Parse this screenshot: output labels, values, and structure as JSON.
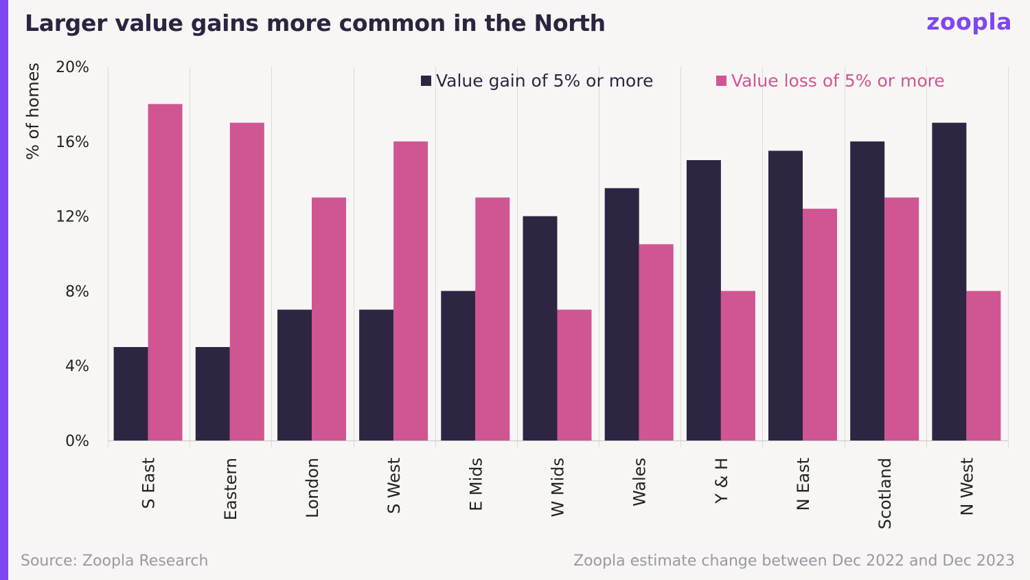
{
  "header": {
    "title": "Larger value gains more common in the North",
    "logo": "zoopla"
  },
  "footer": {
    "source": "Source: Zoopla Research",
    "note": "Zoopla estimate change between Dec 2022 and Dec 2023"
  },
  "colors": {
    "accent": "#8046f0",
    "gain": "#2e2543",
    "loss": "#d05593"
  },
  "chart_data": {
    "type": "bar",
    "title": "Larger value gains more common in the North",
    "xlabel": "",
    "ylabel": "% of homes",
    "ylim": [
      0,
      20
    ],
    "yticks": [
      0,
      4,
      8,
      12,
      16,
      20
    ],
    "ytick_labels": [
      "0%",
      "4%",
      "8%",
      "12%",
      "16%",
      "20%"
    ],
    "grid": "vertical separators",
    "legend": "top-right",
    "categories": [
      "S East",
      "Eastern",
      "London",
      "S West",
      "E Mids",
      "W Mids",
      "Wales",
      "Y & H",
      "N East",
      "Scotland",
      "N West"
    ],
    "series": [
      {
        "name": "Value gain of 5% or more",
        "color": "#2e2543",
        "values": [
          5,
          5,
          7,
          7,
          8,
          12,
          13.5,
          15,
          15.5,
          16,
          17
        ]
      },
      {
        "name": "Value loss of 5% or more",
        "color": "#d05593",
        "values": [
          18,
          17,
          13,
          16,
          13,
          7,
          10.5,
          8,
          12.4,
          13,
          8
        ]
      }
    ]
  }
}
